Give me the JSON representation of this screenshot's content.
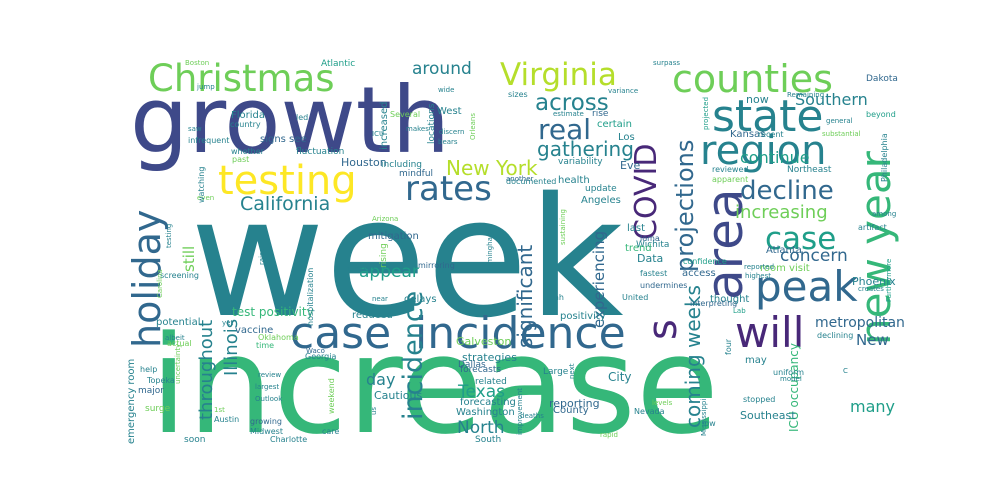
{
  "colors": [
    "#440154",
    "#482878",
    "#3e4989",
    "#31688e",
    "#26828e",
    "#1f9e89",
    "#35b779",
    "#6ece58",
    "#b5de2b",
    "#fde725"
  ],
  "words": [
    {
      "text": "week",
      "c": 4
    },
    {
      "text": "increase",
      "c": 6
    },
    {
      "text": "growth",
      "c": 2
    },
    {
      "text": "incidence",
      "c": 3
    },
    {
      "text": "case",
      "c": 3
    },
    {
      "text": "counties",
      "c": 7
    },
    {
      "text": "Christmas",
      "c": 7
    },
    {
      "text": "state",
      "c": 4
    },
    {
      "text": "region",
      "c": 4
    },
    {
      "text": "testing",
      "c": 9
    },
    {
      "text": "rates",
      "c": 3
    },
    {
      "text": "Virginia",
      "c": 8
    },
    {
      "text": "new year",
      "c": 6
    },
    {
      "text": "peak",
      "c": 3
    },
    {
      "text": "area",
      "c": 2
    },
    {
      "text": "will",
      "c": 1
    },
    {
      "text": "holiday",
      "c": 3
    },
    {
      "text": "COVID",
      "c": 1
    },
    {
      "text": "decline",
      "c": 3
    },
    {
      "text": "real",
      "c": 3
    },
    {
      "text": "s",
      "c": 1
    },
    {
      "text": "across",
      "c": 4
    },
    {
      "text": "projections",
      "c": 3
    },
    {
      "text": "case",
      "c": 5
    },
    {
      "text": "gathering",
      "c": 4
    },
    {
      "text": "New York",
      "c": 8
    },
    {
      "text": "incidence",
      "c": 4
    },
    {
      "text": "coming weeks",
      "c": 4
    },
    {
      "text": "California",
      "c": 4
    },
    {
      "text": "significant",
      "c": 3
    },
    {
      "text": "increasing",
      "c": 7
    },
    {
      "text": "concern",
      "c": 3
    },
    {
      "text": "Southern",
      "c": 4
    },
    {
      "text": "continue",
      "c": 5
    },
    {
      "text": "around",
      "c": 4
    },
    {
      "text": "throughout",
      "c": 4
    },
    {
      "text": "Illinois",
      "c": 4
    },
    {
      "text": "appear",
      "c": 5
    },
    {
      "text": "Texas",
      "c": 5
    },
    {
      "text": "North",
      "c": 4
    },
    {
      "text": "day",
      "c": 4
    },
    {
      "text": "many",
      "c": 5
    },
    {
      "text": "experiencing",
      "c": 3
    },
    {
      "text": "metropolitan",
      "c": 3
    },
    {
      "text": "New",
      "c": 3
    },
    {
      "text": "test positivity",
      "c": 6
    },
    {
      "text": "still",
      "c": 7
    },
    {
      "text": "strategies",
      "c": 4
    },
    {
      "text": "Houston",
      "c": 3
    },
    {
      "text": "mitigation",
      "c": 3
    },
    {
      "text": "Data",
      "c": 4
    },
    {
      "text": "Eve",
      "c": 3
    },
    {
      "text": "Atlanta",
      "c": 3
    },
    {
      "text": "Phoenix",
      "c": 4
    },
    {
      "text": "thought",
      "c": 4
    },
    {
      "text": "room visit",
      "c": 7
    },
    {
      "text": "ICU occupancy",
      "c": 6
    },
    {
      "text": "Washington",
      "c": 4
    },
    {
      "text": "Cautious",
      "c": 4
    },
    {
      "text": "reporting",
      "c": 3
    },
    {
      "text": "City",
      "c": 4
    },
    {
      "text": "emergency room",
      "c": 4
    },
    {
      "text": "Galveston",
      "c": 7
    },
    {
      "text": "forecasting",
      "c": 4
    },
    {
      "text": "County",
      "c": 3
    },
    {
      "text": "Southeast",
      "c": 4
    },
    {
      "text": "Florida",
      "c": 4
    },
    {
      "text": "potential",
      "c": 4
    },
    {
      "text": "vaccine",
      "c": 3
    },
    {
      "text": "signs",
      "c": 3
    },
    {
      "text": "see",
      "c": 3
    },
    {
      "text": "Boston",
      "c": 7
    },
    {
      "text": "Atlantic",
      "c": 5
    },
    {
      "text": "increased",
      "c": 4
    },
    {
      "text": "Several",
      "c": 7
    },
    {
      "text": "led",
      "c": 4
    },
    {
      "text": "including",
      "c": 4
    },
    {
      "text": "mindful",
      "c": 3
    },
    {
      "text": "rising",
      "c": 7
    },
    {
      "text": "certain",
      "c": 5
    },
    {
      "text": "Los",
      "c": 4
    },
    {
      "text": "Angeles",
      "c": 4
    },
    {
      "text": "health",
      "c": 4
    },
    {
      "text": "update",
      "c": 4
    },
    {
      "text": "last",
      "c": 4
    },
    {
      "text": "Wichita",
      "c": 4
    },
    {
      "text": "now",
      "c": 4
    },
    {
      "text": "Kansas",
      "c": 3
    },
    {
      "text": "recent",
      "c": 4
    },
    {
      "text": "Remaining",
      "c": 4
    },
    {
      "text": "Dakota",
      "c": 3
    },
    {
      "text": "beyond",
      "c": 5
    },
    {
      "text": "Philadelphia",
      "c": 4
    },
    {
      "text": "projected",
      "c": 5
    },
    {
      "text": "reviewed",
      "c": 4
    },
    {
      "text": "apparent",
      "c": 7
    },
    {
      "text": "Northeast",
      "c": 4
    },
    {
      "text": "among",
      "c": 4
    },
    {
      "text": "artifact",
      "c": 4
    },
    {
      "text": "reported",
      "c": 4
    },
    {
      "text": "highest",
      "c": 4
    },
    {
      "text": "confidence",
      "c": 5
    },
    {
      "text": "loma",
      "c": 3
    },
    {
      "text": "United",
      "c": 4
    },
    {
      "text": "positivity",
      "c": 4
    },
    {
      "text": "reduced",
      "c": 4
    },
    {
      "text": "Dallas",
      "c": 3
    },
    {
      "text": "Utah",
      "c": 4
    },
    {
      "text": "forecasts",
      "c": 3
    },
    {
      "text": "related",
      "c": 4
    },
    {
      "text": "South",
      "c": 4
    },
    {
      "text": "Large",
      "c": 4
    },
    {
      "text": "Georgia",
      "c": 4
    },
    {
      "text": "Oklahoma",
      "c": 7
    },
    {
      "text": "time",
      "c": 6
    },
    {
      "text": "Topeka",
      "c": 4
    },
    {
      "text": "help",
      "c": 4
    },
    {
      "text": "actual",
      "c": 7
    },
    {
      "text": "major",
      "c": 3
    },
    {
      "text": "surge",
      "c": 7
    },
    {
      "text": "soon",
      "c": 4
    },
    {
      "text": "Austin",
      "c": 4
    },
    {
      "text": "growing",
      "c": 3
    },
    {
      "text": "Midwest",
      "c": 4
    },
    {
      "text": "Charlotte",
      "c": 4
    },
    {
      "text": "care",
      "c": 4
    },
    {
      "text": "review",
      "c": 4
    },
    {
      "text": "largest",
      "c": 4
    },
    {
      "text": "Outlook",
      "c": 4
    },
    {
      "text": "screening",
      "c": 4
    },
    {
      "text": "albeit",
      "c": 4
    },
    {
      "text": "uncertainty",
      "c": 7
    },
    {
      "text": "Carolina",
      "c": 7
    },
    {
      "text": "raise",
      "c": 4
    },
    {
      "text": "numbers",
      "c": 4
    },
    {
      "text": "near",
      "c": 4
    },
    {
      "text": "delays",
      "c": 4
    },
    {
      "text": "mirroring",
      "c": 3
    },
    {
      "text": "Arizona",
      "c": 7
    },
    {
      "text": "hospitalization",
      "c": 4
    },
    {
      "text": "Waco",
      "c": 3
    },
    {
      "text": "trend",
      "c": 6
    },
    {
      "text": "access",
      "c": 3
    },
    {
      "text": "fastest",
      "c": 4
    },
    {
      "text": "undermines",
      "c": 3
    },
    {
      "text": "Lab",
      "c": 5
    },
    {
      "text": "interpreting",
      "c": 3
    },
    {
      "text": "may",
      "c": 4
    },
    {
      "text": "model",
      "c": 4
    },
    {
      "text": "declining",
      "c": 4
    },
    {
      "text": "uniform",
      "c": 4
    },
    {
      "text": "stopped",
      "c": 4
    },
    {
      "text": "Furthermore",
      "c": 5
    },
    {
      "text": "creates",
      "c": 4
    },
    {
      "text": "general",
      "c": 4
    },
    {
      "text": "wide",
      "c": 4
    },
    {
      "text": "locations",
      "c": 4
    },
    {
      "text": "West",
      "c": 4
    },
    {
      "text": "discern",
      "c": 4
    },
    {
      "text": "bears",
      "c": 4
    },
    {
      "text": "another",
      "c": 3
    },
    {
      "text": "documented",
      "c": 4
    },
    {
      "text": "variability",
      "c": 4
    },
    {
      "text": "sustaining",
      "c": 7
    },
    {
      "text": "rise",
      "c": 3
    },
    {
      "text": "variance",
      "c": 4
    },
    {
      "text": "estimate",
      "c": 4
    },
    {
      "text": "surpass",
      "c": 4
    },
    {
      "text": "makes",
      "c": 4
    },
    {
      "text": "sizes",
      "c": 4
    },
    {
      "text": "Orleans",
      "c": 7
    },
    {
      "text": "jump",
      "c": 4
    },
    {
      "text": "country",
      "c": 4
    },
    {
      "text": "saw",
      "c": 4
    },
    {
      "text": "infrequent",
      "c": 4
    },
    {
      "text": "whether",
      "c": 4
    },
    {
      "text": "fluctuation",
      "c": 4
    },
    {
      "text": "past",
      "c": 7
    },
    {
      "text": "even",
      "c": 7
    },
    {
      "text": "watching",
      "c": 4
    },
    {
      "text": "ICU",
      "c": 4
    },
    {
      "text": "next",
      "c": 4
    },
    {
      "text": "Birmingham",
      "c": 4
    },
    {
      "text": "deaths",
      "c": 4
    },
    {
      "text": "improvement",
      "c": 4
    },
    {
      "text": "us",
      "c": 4
    },
    {
      "text": "weekend",
      "c": 7
    },
    {
      "text": "Mississippi",
      "c": 4
    },
    {
      "text": "four",
      "c": 4
    },
    {
      "text": "levels",
      "c": 7
    },
    {
      "text": "rapid",
      "c": 7
    },
    {
      "text": "Nevada",
      "c": 4
    },
    {
      "text": "low",
      "c": 4
    },
    {
      "text": "C",
      "c": 4
    },
    {
      "text": "substantial",
      "c": 7
    },
    {
      "text": "1st",
      "c": 7
    },
    {
      "text": "yet",
      "c": 4
    },
    {
      "text": "testing",
      "c": 4
    }
  ]
}
